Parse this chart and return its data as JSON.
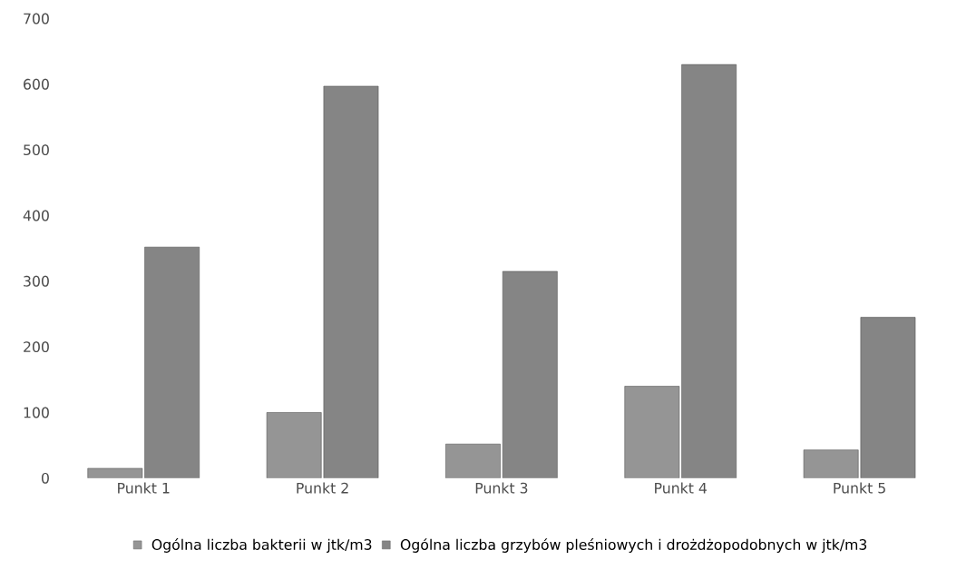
{
  "chart_data": {
    "type": "bar",
    "categories": [
      "Punkt 1",
      "Punkt 2",
      "Punkt 3",
      "Punkt 4",
      "Punkt 5"
    ],
    "series": [
      {
        "name": "Ogólna liczba bakterii w jtk/m3",
        "color": "#959595",
        "values": [
          15,
          100,
          52,
          140,
          43
        ]
      },
      {
        "name": "Ogólna liczba grzybów pleśniowych i drożdżopodobnych w jtk/m3",
        "color": "#858585",
        "values": [
          352,
          597,
          315,
          630,
          245
        ]
      }
    ],
    "ylim": [
      0,
      700
    ],
    "yticks": [
      0,
      100,
      200,
      300,
      400,
      500,
      600,
      700
    ],
    "legend": "bottom"
  }
}
